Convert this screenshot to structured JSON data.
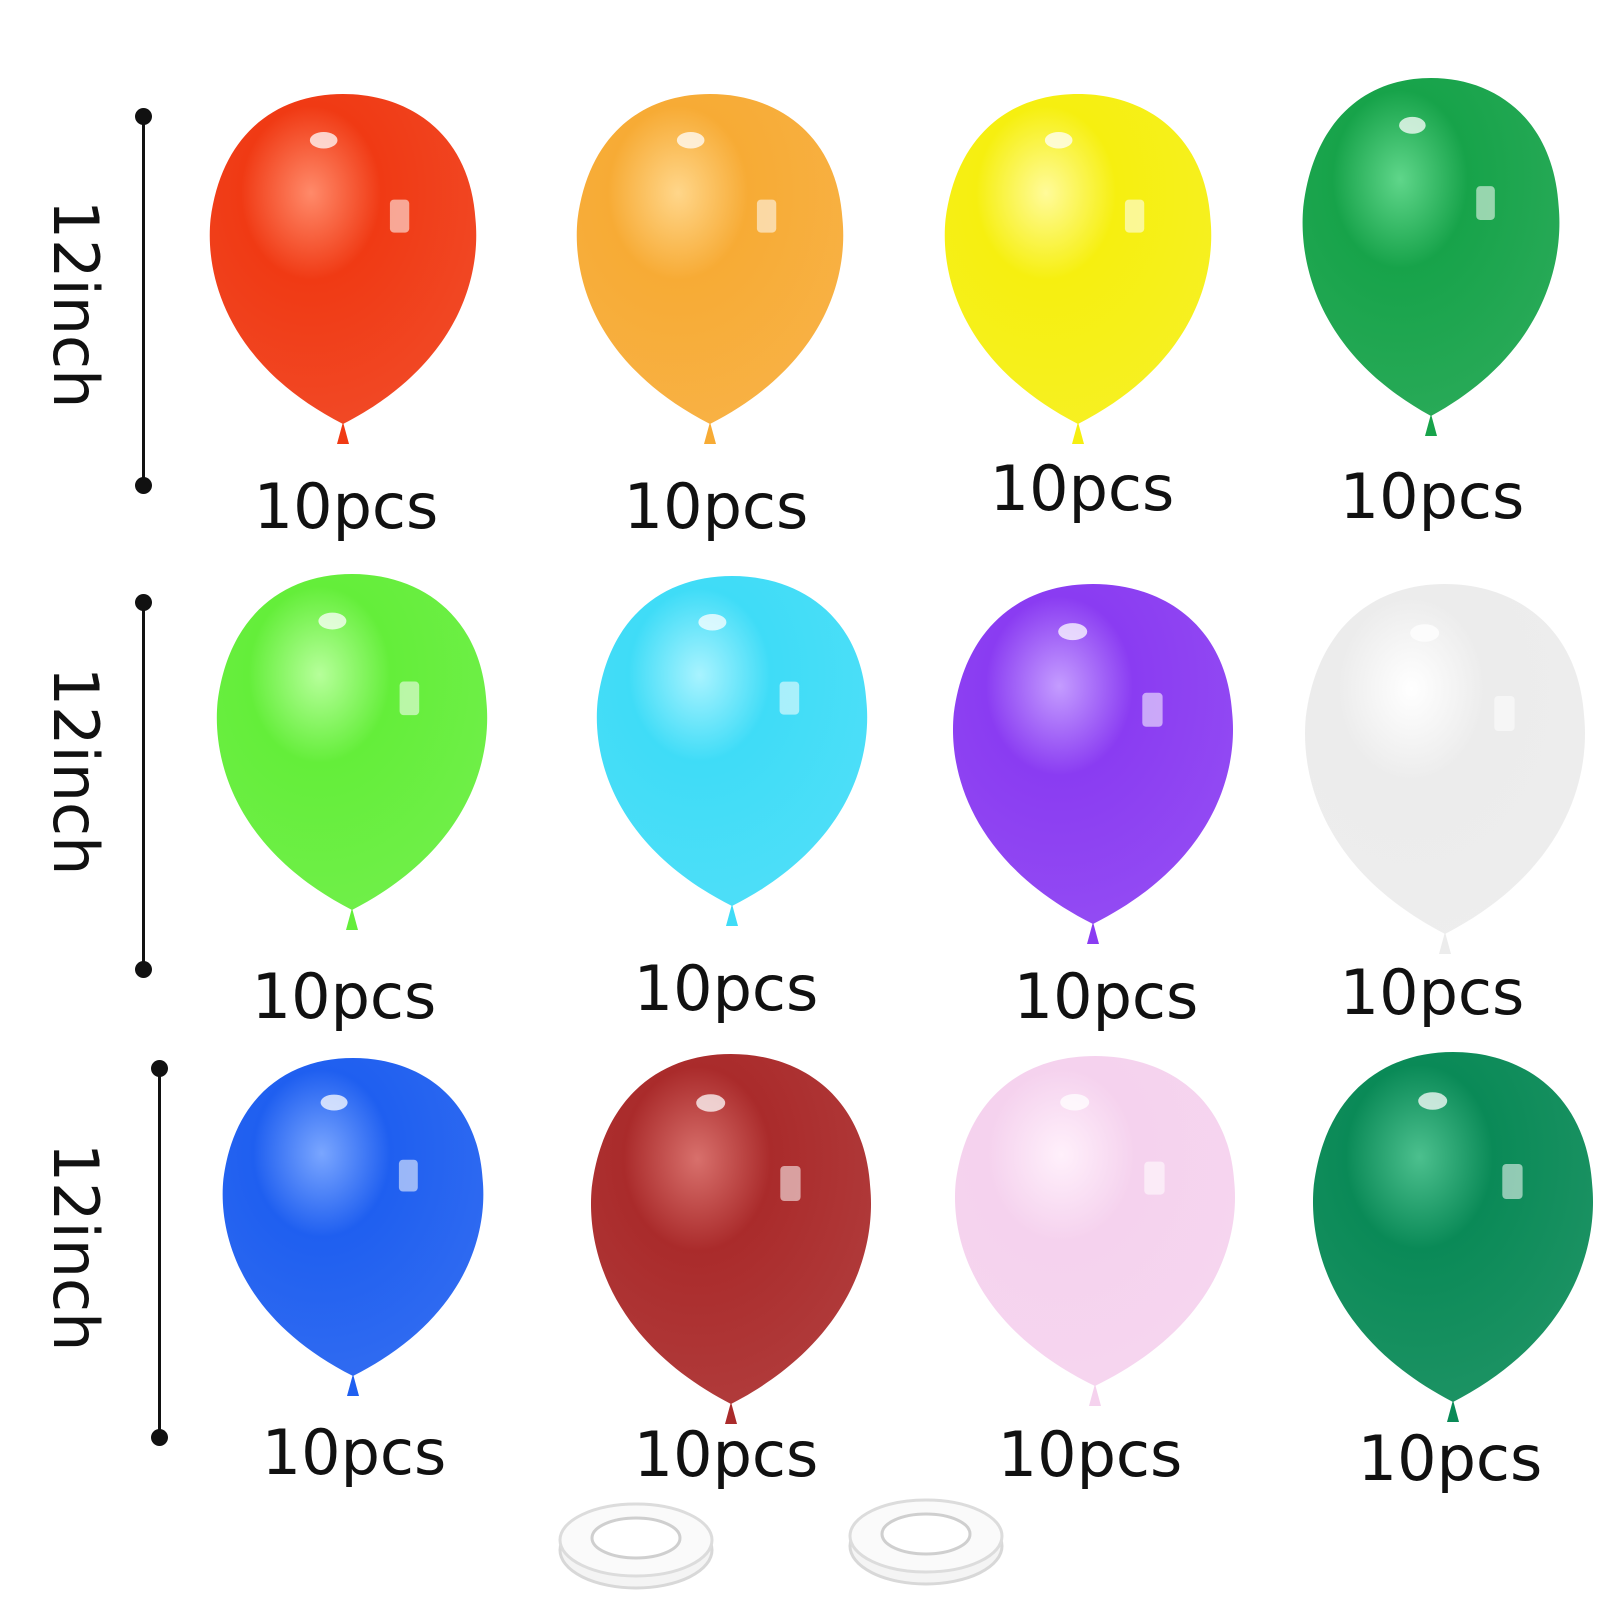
{
  "size_labels": [
    "12inch",
    "12inch",
    "12inch"
  ],
  "balloons": [
    {
      "color": "#f03a14",
      "highlight": "#ff8a6a",
      "label": "10pcs"
    },
    {
      "color": "#f7ab35",
      "highlight": "#ffd68a",
      "label": "10pcs"
    },
    {
      "color": "#f6ef10",
      "highlight": "#fffb9a",
      "label": "10pcs"
    },
    {
      "color": "#17a34a",
      "highlight": "#5fd68a",
      "label": "10pcs"
    },
    {
      "color": "#64ee3a",
      "highlight": "#b6ff9a",
      "label": "10pcs"
    },
    {
      "color": "#3fdcf7",
      "highlight": "#a8f3ff",
      "label": "10pcs"
    },
    {
      "color": "#8a3cf2",
      "highlight": "#c49cff",
      "label": "10pcs"
    },
    {
      "color": "#ececec",
      "highlight": "#ffffff",
      "label": "10pcs"
    },
    {
      "color": "#1f5ff0",
      "highlight": "#7aa6ff",
      "label": "10pcs"
    },
    {
      "color": "#aa2b2b",
      "highlight": "#d8706c",
      "label": "10pcs"
    },
    {
      "color": "#f5d2ee",
      "highlight": "#fff0fb",
      "label": "10pcs"
    },
    {
      "color": "#0a8a57",
      "highlight": "#4cc08e",
      "label": "10pcs"
    }
  ],
  "ribbon_spools": 2
}
